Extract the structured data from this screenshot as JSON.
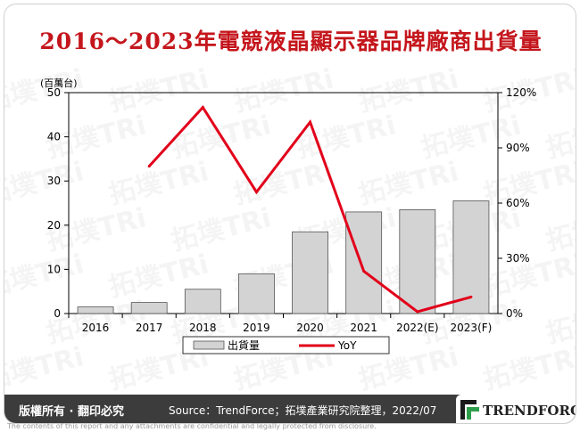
{
  "title": "2016～2023年電競液晶顯示器品牌廠商出貨量",
  "chart_data": {
    "type": "bar+line",
    "categories": [
      "2016",
      "2017",
      "2018",
      "2019",
      "2020",
      "2021",
      "2022(E)",
      "2023(F)"
    ],
    "series": [
      {
        "name": "出貨量",
        "type": "bar",
        "axis": "left",
        "values": [
          1.5,
          2.5,
          5.5,
          9.0,
          18.5,
          23.0,
          23.5,
          25.5
        ]
      },
      {
        "name": "YoY",
        "type": "line",
        "axis": "right",
        "values": [
          null,
          80,
          112,
          66,
          104,
          23,
          1,
          9
        ]
      }
    ],
    "y_left": {
      "unit_label": "(百萬台)",
      "ylim": [
        0,
        50
      ],
      "ticks": [
        "0",
        "10",
        "20",
        "30",
        "40",
        "50"
      ]
    },
    "y_right": {
      "ylim": [
        0,
        120
      ],
      "ticks": [
        "0%",
        "30%",
        "60%",
        "90%",
        "120%"
      ]
    },
    "legend_placement": "bottom-center",
    "colors": {
      "bar_fill": "#d3d3d3",
      "bar_stroke": "#555555",
      "line": "#e2001a"
    }
  },
  "footer": {
    "rights": "版權所有 · 翻印必究",
    "source": "Source：TrendForce；拓墣產業研究院整理，2022/07",
    "logo_text": "TRENDFORCE"
  },
  "disclaimer": "The contents of this report and any attachments are confidential and legally protected from disclosure.",
  "watermark_text": "拓墣TRi"
}
